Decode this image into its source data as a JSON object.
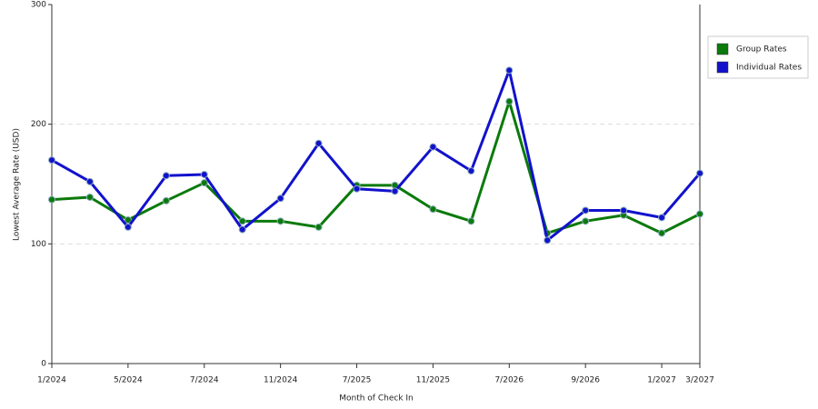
{
  "chart_data": {
    "type": "line",
    "x_label": "Month of Check In",
    "y_label": "Lowest Average Rate (USD)",
    "categories": [
      "1/2024",
      null,
      "5/2024",
      null,
      "7/2024",
      null,
      "11/2024",
      null,
      "7/2025",
      null,
      "11/2025",
      null,
      "7/2026",
      null,
      "9/2026",
      null,
      "1/2027",
      "3/2027"
    ],
    "series": [
      {
        "name": "Group Rates",
        "color": "#0b7a0b",
        "values": [
          137,
          139,
          120,
          136,
          151,
          119,
          119,
          114,
          149,
          149,
          129,
          119,
          219,
          109,
          119,
          124,
          109,
          125
        ]
      },
      {
        "name": "Individual Rates",
        "color": "#1212cc",
        "values": [
          170,
          152,
          114,
          157,
          158,
          112,
          138,
          184,
          146,
          144,
          181,
          161,
          245,
          103,
          128,
          128,
          122,
          159
        ]
      }
    ],
    "ylim": [
      0,
      300
    ],
    "yticks": [
      0,
      100,
      200,
      300
    ],
    "grid": true,
    "legend": "right"
  }
}
